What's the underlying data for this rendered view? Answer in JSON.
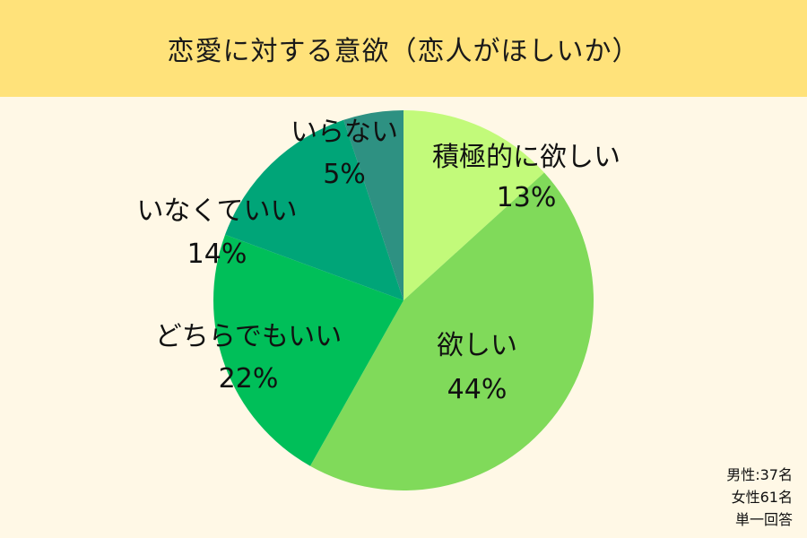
{
  "title": "恋愛に対する意欲（恋人がほしいか）",
  "chart_data": {
    "type": "pie",
    "title": "恋愛に対する意欲（恋人がほしいか）",
    "slices": [
      {
        "label": "積極的に欲しい",
        "value": 13,
        "value_label": "13%",
        "color": "#C2FA7A"
      },
      {
        "label": "欲しい",
        "value": 44,
        "value_label": "44%",
        "color": "#80DA5A"
      },
      {
        "label": "どちらでもいい",
        "value": 22,
        "value_label": "22%",
        "color": "#00BF59"
      },
      {
        "label": "いなくていい",
        "value": 14,
        "value_label": "14%",
        "color": "#00A578"
      },
      {
        "label": "いらない",
        "value": 5,
        "value_label": "5%",
        "color": "#2E9182"
      }
    ],
    "start_angle": "12 o'clock",
    "direction": "clockwise"
  },
  "footnote": {
    "line1": "男性:37名",
    "line2": "女性61名",
    "line3": "単一回答"
  },
  "colors": {
    "title_bar": "#FFE27A",
    "background": "#FFF8E6"
  }
}
